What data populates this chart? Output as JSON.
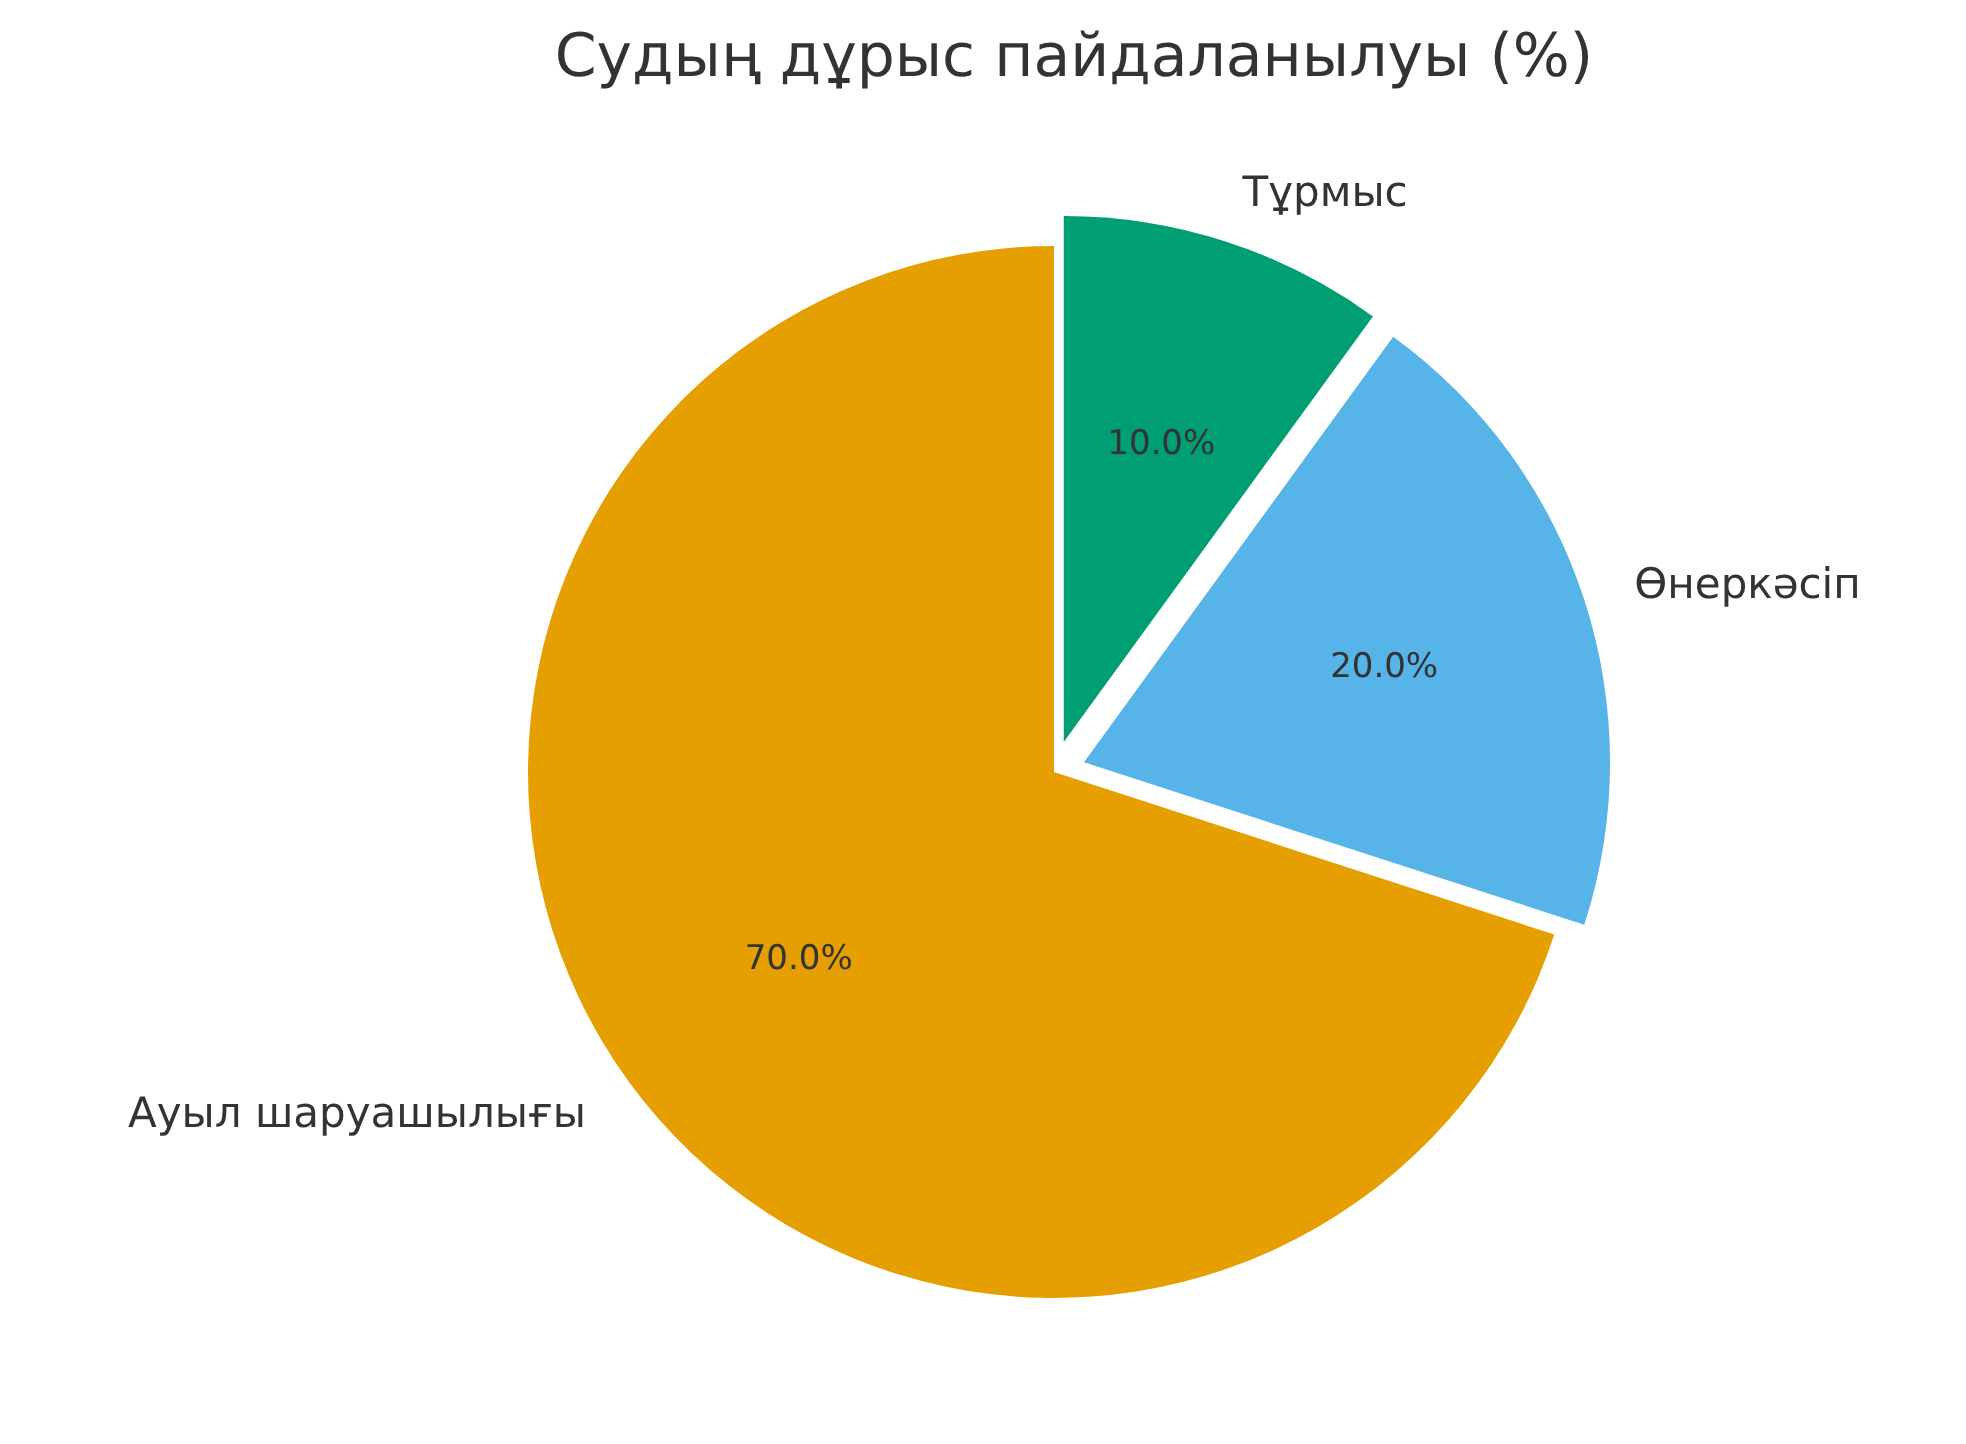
{
  "chart_data": {
    "type": "pie",
    "title": "Судың дұрыс пайдаланылуы (%)",
    "categories": [
      "Тұрмыс",
      "Өнеркәсіп",
      "Ауыл шаруашылығы"
    ],
    "values": [
      10,
      20,
      70
    ],
    "colors": [
      "#009e73",
      "#56b4e9",
      "#e69f00"
    ],
    "value_labels": [
      "10.0%",
      "20.0%",
      "70.0%"
    ]
  }
}
